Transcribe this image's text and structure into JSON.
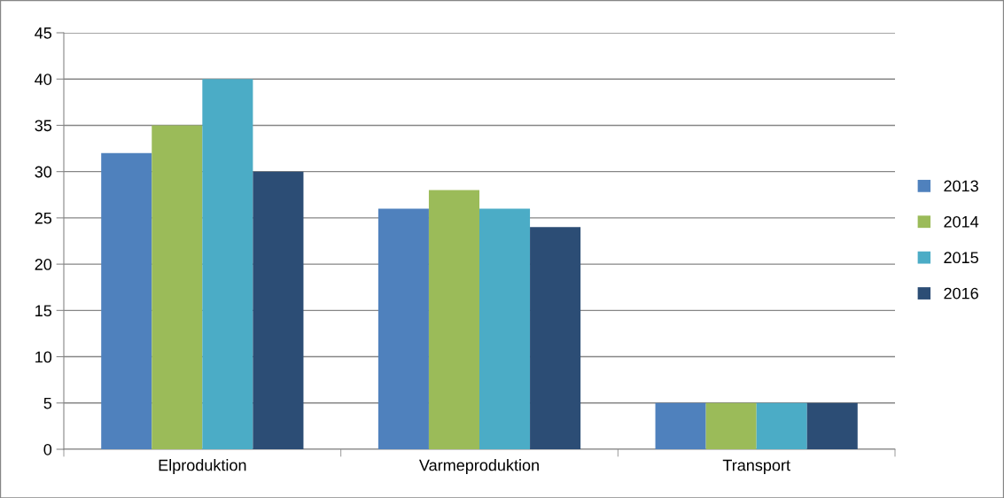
{
  "chart_data": {
    "type": "bar",
    "categories": [
      "Elproduktion",
      "Varmeproduktion",
      "Transport"
    ],
    "series": [
      {
        "name": "2013",
        "color": "#4f81bd",
        "values": [
          32,
          26,
          5
        ]
      },
      {
        "name": "2014",
        "color": "#9bbb59",
        "values": [
          35,
          28,
          5
        ]
      },
      {
        "name": "2015",
        "color": "#4bacc6",
        "values": [
          40,
          26,
          5
        ]
      },
      {
        "name": "2016",
        "color": "#2c4d75",
        "values": [
          30,
          24,
          5
        ]
      }
    ],
    "ylim": [
      0,
      45
    ],
    "yticks": [
      0,
      5,
      10,
      15,
      20,
      25,
      30,
      35,
      40,
      45
    ],
    "grid": "y",
    "legend": "right"
  }
}
